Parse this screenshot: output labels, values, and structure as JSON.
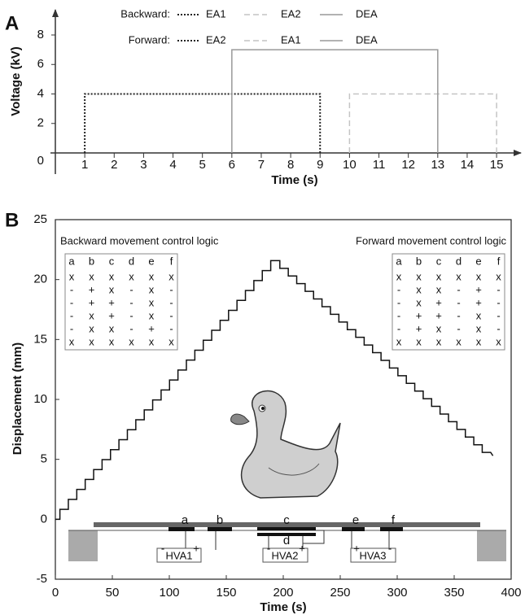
{
  "chart_data": [
    {
      "panel": "A",
      "type": "line",
      "xlabel": "Time (s)",
      "ylabel": "Voltage (kV)",
      "xlim": [
        0,
        15.8
      ],
      "ylim": [
        0,
        9.6
      ],
      "xticks": [
        1,
        2,
        3,
        4,
        5,
        6,
        7,
        8,
        9,
        10,
        11,
        12,
        13,
        14,
        15
      ],
      "yticks": [
        0,
        2,
        4,
        6,
        8
      ],
      "legend": [
        {
          "label": "Backward:",
          "names": [
            "EA1",
            "EA2",
            "DEA"
          ]
        },
        {
          "label": "Forward:",
          "names": [
            "EA2",
            "EA1",
            "DEA"
          ]
        }
      ],
      "series": [
        {
          "style": "dotted",
          "color": "#222222",
          "x": [
            1,
            1,
            9,
            9
          ],
          "values": [
            0,
            4,
            4,
            0
          ]
        },
        {
          "style": "dashed",
          "color": "#c4c4c4",
          "x": [
            10,
            10,
            15,
            15
          ],
          "values": [
            0,
            4,
            4,
            0
          ]
        },
        {
          "style": "solid",
          "color": "#999999",
          "x": [
            6,
            6,
            13,
            13
          ],
          "values": [
            0,
            7,
            7,
            0
          ]
        }
      ]
    },
    {
      "panel": "B",
      "type": "line",
      "xlabel": "Time (s)",
      "ylabel": "Displacement (mm)",
      "xlim": [
        0,
        400
      ],
      "ylim": [
        -5,
        25
      ],
      "xticks": [
        0,
        50,
        100,
        150,
        200,
        250,
        300,
        350,
        400
      ],
      "yticks": [
        -5,
        0,
        5,
        10,
        15,
        20,
        25
      ],
      "series": [
        {
          "style": "solid",
          "color": "#111111",
          "x": [
            0,
            4,
            4,
            11.4,
            11.4,
            18.8,
            18.8,
            26.2,
            26.2,
            33.6,
            33.6,
            41,
            41,
            48.4,
            48.4,
            55.8,
            55.8,
            63.2,
            63.2,
            70.6,
            70.6,
            78,
            78,
            85.4,
            85.4,
            92.8,
            92.8,
            100.2,
            100.2,
            107.6,
            107.6,
            115,
            115,
            122.4,
            122.4,
            129.8,
            129.8,
            137.2,
            137.2,
            144.6,
            144.6,
            152,
            152,
            159.4,
            159.4,
            166.8,
            166.8,
            174.2,
            174.2,
            181.6,
            181.6,
            189,
            189,
            197,
            197,
            204.4,
            204.4,
            211.8,
            211.8,
            219.2,
            219.2,
            226.6,
            226.6,
            234,
            234,
            241.4,
            241.4,
            248.8,
            248.8,
            256.2,
            256.2,
            263.6,
            263.6,
            271,
            271,
            278.4,
            278.4,
            285.8,
            285.8,
            293.2,
            293.2,
            300.6,
            300.6,
            308,
            308,
            315.4,
            315.4,
            322.8,
            322.8,
            330.2,
            330.2,
            337.6,
            337.6,
            345,
            345,
            352.4,
            352.4,
            359.8,
            359.8,
            367.2,
            367.2,
            374.6,
            374.6,
            382,
            384
          ],
          "values": [
            0,
            0,
            0.83,
            0.83,
            1.66,
            1.66,
            2.49,
            2.49,
            3.32,
            3.32,
            4.15,
            4.15,
            4.98,
            4.98,
            5.81,
            5.81,
            6.64,
            6.64,
            7.47,
            7.47,
            8.3,
            8.3,
            9.13,
            9.13,
            9.96,
            9.96,
            10.79,
            10.79,
            11.62,
            11.62,
            12.45,
            12.45,
            13.28,
            13.28,
            14.11,
            14.11,
            14.94,
            14.94,
            15.77,
            15.77,
            16.6,
            16.6,
            17.43,
            17.43,
            18.26,
            18.26,
            19.09,
            19.09,
            19.92,
            19.92,
            20.75,
            20.75,
            21.58,
            21.58,
            20.94,
            20.94,
            20.3,
            20.3,
            19.66,
            19.66,
            19.02,
            19.02,
            18.38,
            18.38,
            17.74,
            17.74,
            17.1,
            17.1,
            16.46,
            16.46,
            15.82,
            15.82,
            15.18,
            15.18,
            14.54,
            14.54,
            13.9,
            13.9,
            13.26,
            13.26,
            12.62,
            12.62,
            11.98,
            11.98,
            11.34,
            11.34,
            10.7,
            10.7,
            10.06,
            10.06,
            9.42,
            9.42,
            8.78,
            8.78,
            8.14,
            8.14,
            7.5,
            7.5,
            6.86,
            6.86,
            6.22,
            6.22,
            5.58,
            5.58,
            5.3
          ]
        }
      ],
      "tables": [
        {
          "title": "Backward movement control logic",
          "header": [
            "a",
            "b",
            "c",
            "d",
            "e",
            "f"
          ],
          "rows": [
            [
              "x",
              "x",
              "x",
              "x",
              "x",
              "x"
            ],
            [
              "-",
              "+",
              "x",
              "-",
              "x",
              "-"
            ],
            [
              "-",
              "+",
              "+",
              "-",
              "x",
              "-"
            ],
            [
              "-",
              "x",
              "+",
              "-",
              "x",
              "-"
            ],
            [
              "-",
              "x",
              "x",
              "-",
              "+",
              "-"
            ],
            [
              "x",
              "x",
              "x",
              "x",
              "x",
              "x"
            ]
          ]
        },
        {
          "title": "Forward movement control logic",
          "header": [
            "a",
            "b",
            "c",
            "d",
            "e",
            "f"
          ],
          "rows": [
            [
              "x",
              "x",
              "x",
              "x",
              "x",
              "x"
            ],
            [
              "-",
              "x",
              "x",
              "-",
              "+",
              "-"
            ],
            [
              "-",
              "x",
              "+",
              "-",
              "+",
              "-"
            ],
            [
              "-",
              "+",
              "+",
              "-",
              "x",
              "-"
            ],
            [
              "-",
              "+",
              "x",
              "-",
              "x",
              "-"
            ],
            [
              "x",
              "x",
              "x",
              "x",
              "x",
              "x"
            ]
          ]
        }
      ],
      "diagram": {
        "electrodes": [
          "a",
          "b",
          "c",
          "d",
          "e",
          "f"
        ],
        "supplies": [
          {
            "name": "HVA1",
            "signs": [
              "-",
              "+"
            ]
          },
          {
            "name": "HVA2",
            "signs": [
              "-",
              "+"
            ]
          },
          {
            "name": "HVA3",
            "signs": [
              "+",
              "-"
            ]
          }
        ]
      }
    }
  ]
}
